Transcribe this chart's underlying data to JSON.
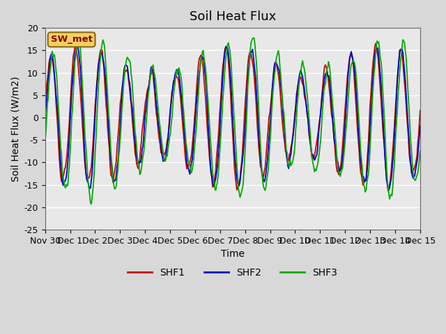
{
  "title": "Soil Heat Flux",
  "ylabel": "Soil Heat Flux (W/m2)",
  "xlabel": "Time",
  "ylim": [
    -25,
    20
  ],
  "yticks": [
    -25,
    -20,
    -15,
    -10,
    -5,
    0,
    5,
    10,
    15,
    20
  ],
  "xtick_labels": [
    "Nov 30",
    "Dec 1",
    "Dec 2",
    "Dec 3",
    "Dec 4",
    "Dec 5",
    "Dec 6",
    "Dec 7",
    "Dec 8",
    "Dec 9",
    "Dec 10",
    "Dec 11",
    "Dec 12",
    "Dec 13",
    "Dec 14",
    "Dec 15"
  ],
  "legend_entries": [
    "SHF1",
    "SHF2",
    "SHF3"
  ],
  "line_colors": [
    "#cc0000",
    "#0000cc",
    "#00aa00"
  ],
  "annotation_text": "SW_met",
  "annotation_color": "#8B0000",
  "annotation_bg": "#f5d060",
  "annotation_edge": "#8B6914",
  "fig_bg": "#d8d8d8",
  "plot_bg": "#e8e8e8",
  "grid_color": "#ffffff",
  "title_fontsize": 13,
  "label_fontsize": 10,
  "tick_fontsize": 9,
  "n_points": 480,
  "n_days": 15
}
